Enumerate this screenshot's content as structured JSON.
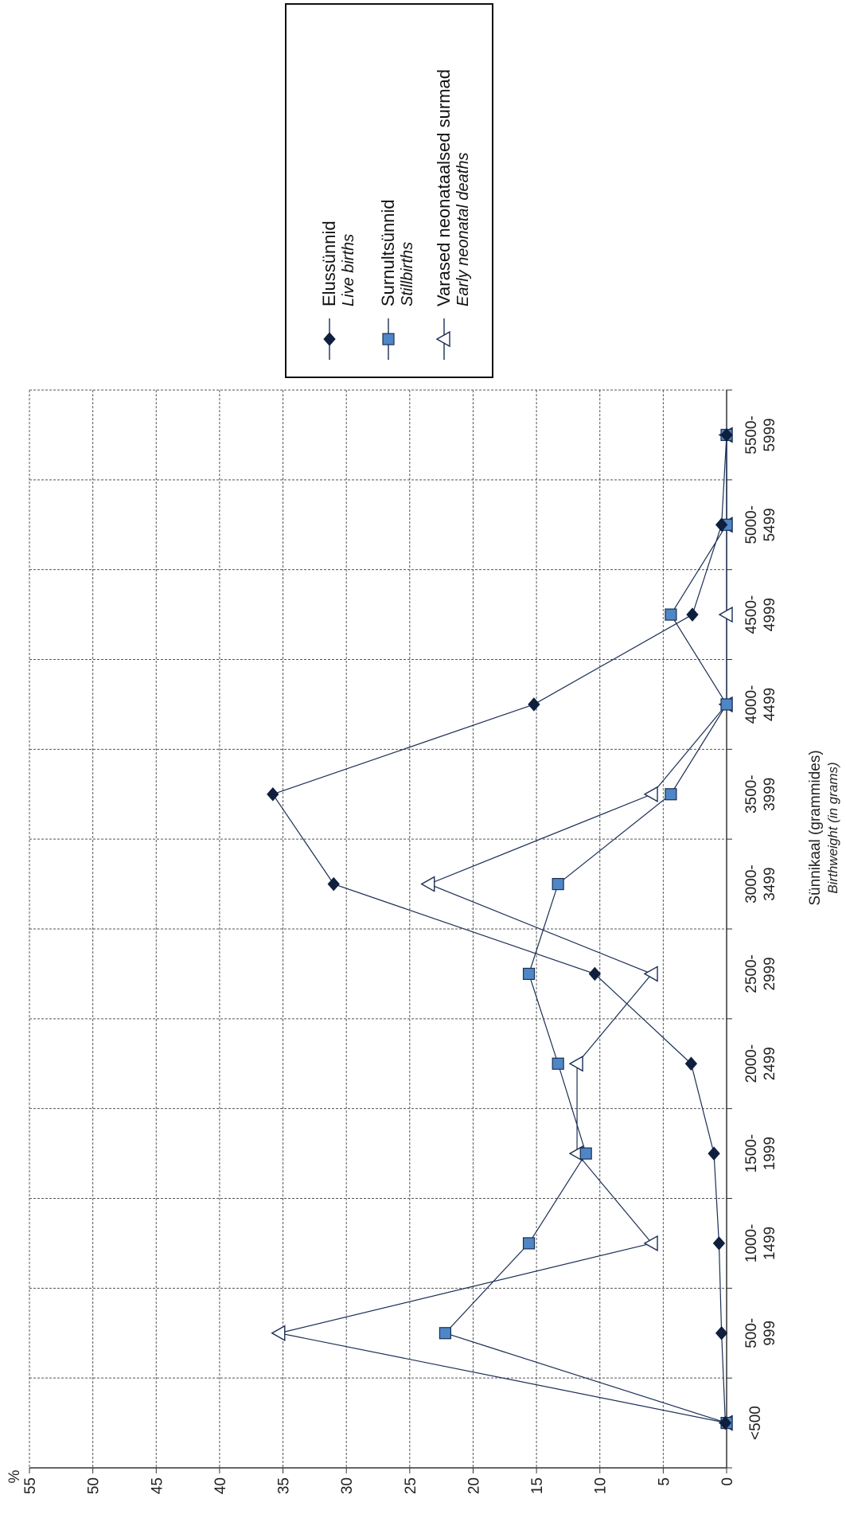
{
  "chart_data": {
    "type": "line",
    "orientation": "rotated 90 degrees counter-clockwise",
    "y_unit_label": "%",
    "xlabel": "Sünnikaal (grammides)",
    "xlabel_en": "Birthweight (in grams)",
    "categories": [
      [
        "<500"
      ],
      [
        "500-",
        "999"
      ],
      [
        "1000-",
        "1499"
      ],
      [
        "1500-",
        "1999"
      ],
      [
        "2000-",
        "2499"
      ],
      [
        "2500-",
        "2999"
      ],
      [
        "3000-",
        "3499"
      ],
      [
        "3500-",
        "3999"
      ],
      [
        "4000-",
        "4499"
      ],
      [
        "4500-",
        "4999"
      ],
      [
        "5000-",
        "5499"
      ],
      [
        "5500-",
        "5999"
      ]
    ],
    "yticks": [
      "0",
      "5",
      "10",
      "15",
      "20",
      "25",
      "30",
      "35",
      "40",
      "45",
      "50",
      "55"
    ],
    "ylim": [
      0,
      55
    ],
    "grid": true,
    "legend_position": "top-right",
    "series": [
      {
        "name": "Elussünnid",
        "name_en": "Live births",
        "marker": "diamond",
        "color": "#0f1f3d",
        "values": [
          0.1,
          0.4,
          0.6,
          1.0,
          2.8,
          10.4,
          31.0,
          35.8,
          15.2,
          2.7,
          0.4,
          0.0
        ]
      },
      {
        "name": "Surnultsünnid",
        "name_en": "Stillbirths",
        "marker": "square",
        "color": "#4f86c6",
        "values": [
          0.0,
          22.2,
          15.6,
          11.1,
          13.3,
          15.6,
          13.3,
          4.4,
          0.0,
          4.4,
          0.0,
          0.0
        ]
      },
      {
        "name": "Varased neonataalsed surmad",
        "name_en": "Early neonatal deaths",
        "marker": "triangle",
        "color": "#ffffff",
        "values": [
          0.0,
          35.3,
          5.9,
          11.8,
          11.8,
          5.9,
          23.5,
          5.9,
          0.0,
          0.0,
          0.0,
          0.0
        ]
      }
    ]
  }
}
